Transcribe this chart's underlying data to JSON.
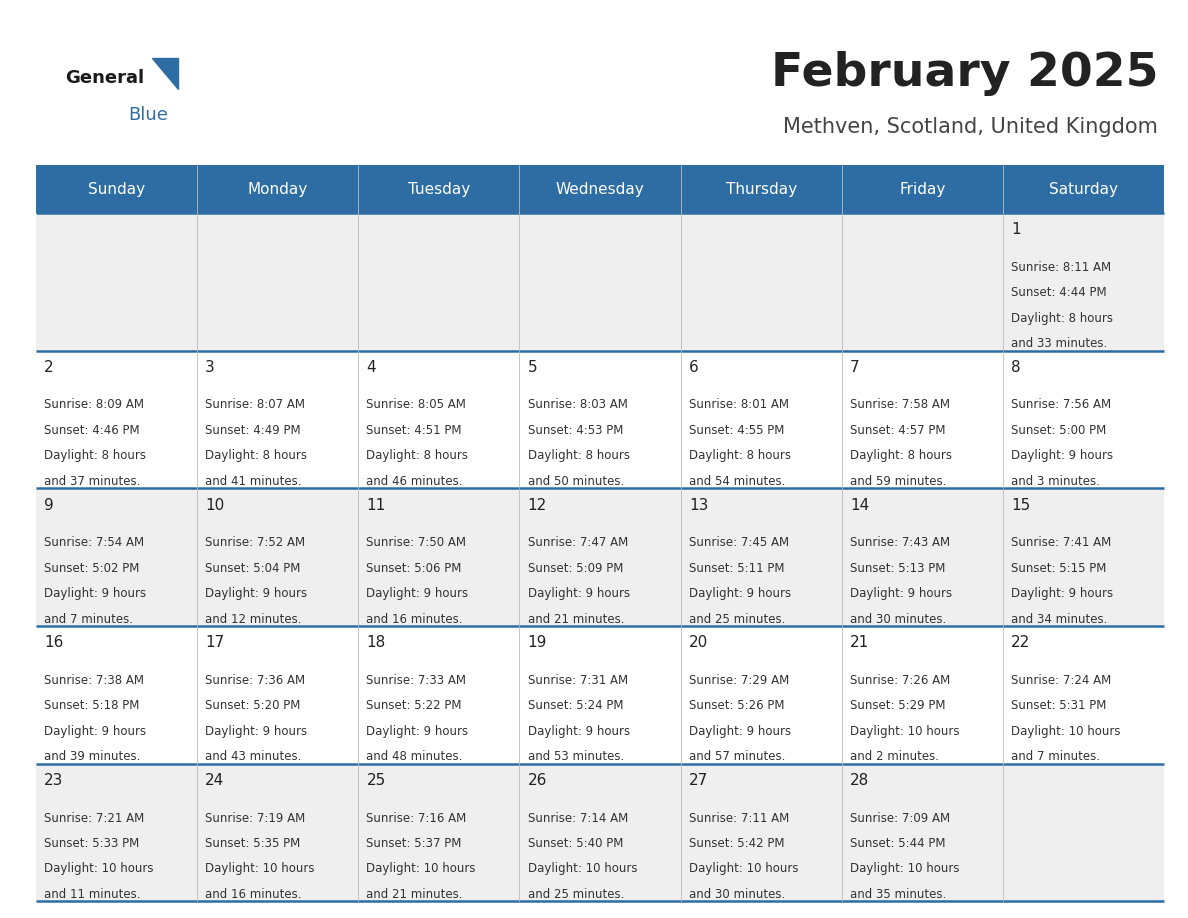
{
  "title": "February 2025",
  "subtitle": "Methven, Scotland, United Kingdom",
  "days_of_week": [
    "Sunday",
    "Monday",
    "Tuesday",
    "Wednesday",
    "Thursday",
    "Friday",
    "Saturday"
  ],
  "header_bg": "#2E6DA4",
  "header_text": "#FFFFFF",
  "row_bg_odd": "#EFEFEF",
  "row_bg_even": "#FFFFFF",
  "cell_border": "#2E6DA4",
  "day_number_color": "#222222",
  "info_text_color": "#333333",
  "title_color": "#222222",
  "subtitle_color": "#444444",
  "calendar_data": {
    "1": {
      "sunrise": "8:11 AM",
      "sunset": "4:44 PM",
      "daylight_line1": "Daylight: 8 hours",
      "daylight_line2": "and 33 minutes."
    },
    "2": {
      "sunrise": "8:09 AM",
      "sunset": "4:46 PM",
      "daylight_line1": "Daylight: 8 hours",
      "daylight_line2": "and 37 minutes."
    },
    "3": {
      "sunrise": "8:07 AM",
      "sunset": "4:49 PM",
      "daylight_line1": "Daylight: 8 hours",
      "daylight_line2": "and 41 minutes."
    },
    "4": {
      "sunrise": "8:05 AM",
      "sunset": "4:51 PM",
      "daylight_line1": "Daylight: 8 hours",
      "daylight_line2": "and 46 minutes."
    },
    "5": {
      "sunrise": "8:03 AM",
      "sunset": "4:53 PM",
      "daylight_line1": "Daylight: 8 hours",
      "daylight_line2": "and 50 minutes."
    },
    "6": {
      "sunrise": "8:01 AM",
      "sunset": "4:55 PM",
      "daylight_line1": "Daylight: 8 hours",
      "daylight_line2": "and 54 minutes."
    },
    "7": {
      "sunrise": "7:58 AM",
      "sunset": "4:57 PM",
      "daylight_line1": "Daylight: 8 hours",
      "daylight_line2": "and 59 minutes."
    },
    "8": {
      "sunrise": "7:56 AM",
      "sunset": "5:00 PM",
      "daylight_line1": "Daylight: 9 hours",
      "daylight_line2": "and 3 minutes."
    },
    "9": {
      "sunrise": "7:54 AM",
      "sunset": "5:02 PM",
      "daylight_line1": "Daylight: 9 hours",
      "daylight_line2": "and 7 minutes."
    },
    "10": {
      "sunrise": "7:52 AM",
      "sunset": "5:04 PM",
      "daylight_line1": "Daylight: 9 hours",
      "daylight_line2": "and 12 minutes."
    },
    "11": {
      "sunrise": "7:50 AM",
      "sunset": "5:06 PM",
      "daylight_line1": "Daylight: 9 hours",
      "daylight_line2": "and 16 minutes."
    },
    "12": {
      "sunrise": "7:47 AM",
      "sunset": "5:09 PM",
      "daylight_line1": "Daylight: 9 hours",
      "daylight_line2": "and 21 minutes."
    },
    "13": {
      "sunrise": "7:45 AM",
      "sunset": "5:11 PM",
      "daylight_line1": "Daylight: 9 hours",
      "daylight_line2": "and 25 minutes."
    },
    "14": {
      "sunrise": "7:43 AM",
      "sunset": "5:13 PM",
      "daylight_line1": "Daylight: 9 hours",
      "daylight_line2": "and 30 minutes."
    },
    "15": {
      "sunrise": "7:41 AM",
      "sunset": "5:15 PM",
      "daylight_line1": "Daylight: 9 hours",
      "daylight_line2": "and 34 minutes."
    },
    "16": {
      "sunrise": "7:38 AM",
      "sunset": "5:18 PM",
      "daylight_line1": "Daylight: 9 hours",
      "daylight_line2": "and 39 minutes."
    },
    "17": {
      "sunrise": "7:36 AM",
      "sunset": "5:20 PM",
      "daylight_line1": "Daylight: 9 hours",
      "daylight_line2": "and 43 minutes."
    },
    "18": {
      "sunrise": "7:33 AM",
      "sunset": "5:22 PM",
      "daylight_line1": "Daylight: 9 hours",
      "daylight_line2": "and 48 minutes."
    },
    "19": {
      "sunrise": "7:31 AM",
      "sunset": "5:24 PM",
      "daylight_line1": "Daylight: 9 hours",
      "daylight_line2": "and 53 minutes."
    },
    "20": {
      "sunrise": "7:29 AM",
      "sunset": "5:26 PM",
      "daylight_line1": "Daylight: 9 hours",
      "daylight_line2": "and 57 minutes."
    },
    "21": {
      "sunrise": "7:26 AM",
      "sunset": "5:29 PM",
      "daylight_line1": "Daylight: 10 hours",
      "daylight_line2": "and 2 minutes."
    },
    "22": {
      "sunrise": "7:24 AM",
      "sunset": "5:31 PM",
      "daylight_line1": "Daylight: 10 hours",
      "daylight_line2": "and 7 minutes."
    },
    "23": {
      "sunrise": "7:21 AM",
      "sunset": "5:33 PM",
      "daylight_line1": "Daylight: 10 hours",
      "daylight_line2": "and 11 minutes."
    },
    "24": {
      "sunrise": "7:19 AM",
      "sunset": "5:35 PM",
      "daylight_line1": "Daylight: 10 hours",
      "daylight_line2": "and 16 minutes."
    },
    "25": {
      "sunrise": "7:16 AM",
      "sunset": "5:37 PM",
      "daylight_line1": "Daylight: 10 hours",
      "daylight_line2": "and 21 minutes."
    },
    "26": {
      "sunrise": "7:14 AM",
      "sunset": "5:40 PM",
      "daylight_line1": "Daylight: 10 hours",
      "daylight_line2": "and 25 minutes."
    },
    "27": {
      "sunrise": "7:11 AM",
      "sunset": "5:42 PM",
      "daylight_line1": "Daylight: 10 hours",
      "daylight_line2": "and 30 minutes."
    },
    "28": {
      "sunrise": "7:09 AM",
      "sunset": "5:44 PM",
      "daylight_line1": "Daylight: 10 hours",
      "daylight_line2": "and 35 minutes."
    }
  },
  "fig_width": 11.88,
  "fig_height": 9.18,
  "dpi": 100
}
